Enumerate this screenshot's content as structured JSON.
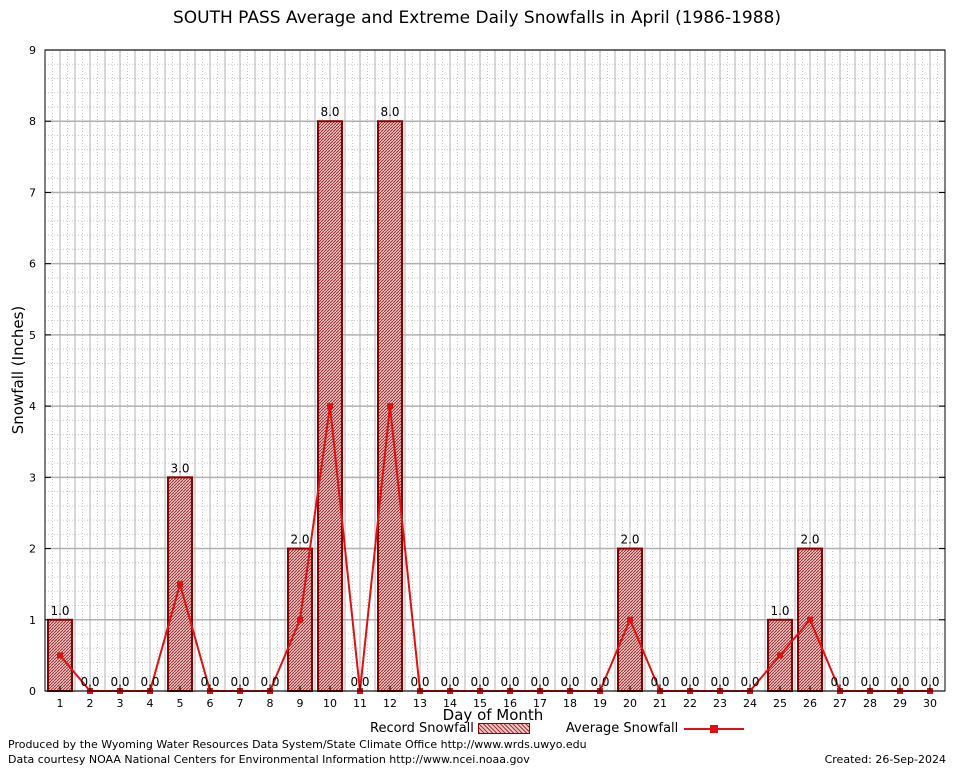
{
  "chart_data": {
    "type": "bar",
    "title": "SOUTH PASS Average and Extreme Daily Snowfalls in April (1986-1988)",
    "xlabel": "Day of Month",
    "ylabel": "Snowfall (Inches)",
    "categories": [
      "1",
      "2",
      "3",
      "4",
      "5",
      "6",
      "7",
      "8",
      "9",
      "10",
      "11",
      "12",
      "13",
      "14",
      "15",
      "16",
      "17",
      "18",
      "19",
      "20",
      "21",
      "22",
      "23",
      "24",
      "25",
      "26",
      "27",
      "28",
      "29",
      "30"
    ],
    "ylim": [
      0,
      9
    ],
    "yticks": [
      0,
      1,
      2,
      3,
      4,
      5,
      6,
      7,
      8,
      9
    ],
    "series": [
      {
        "name": "Record Snowfall",
        "kind": "bar",
        "values": [
          1.0,
          0.0,
          0.0,
          0.0,
          3.0,
          0.0,
          0.0,
          0.0,
          2.0,
          8.0,
          0.0,
          8.0,
          0.0,
          0.0,
          0.0,
          0.0,
          0.0,
          0.0,
          0.0,
          2.0,
          0.0,
          0.0,
          0.0,
          0.0,
          1.0,
          2.0,
          0.0,
          0.0,
          0.0,
          0.0
        ],
        "labels": [
          "1.0",
          "0.0",
          "0.0",
          "0.0",
          "3.0",
          "0.0",
          "0.0",
          "0.0",
          "2.0",
          "8.0",
          "0.0",
          "8.0",
          "0.0",
          "0.0",
          "0.0",
          "0.0",
          "0.0",
          "0.0",
          "0.0",
          "2.0",
          "0.0",
          "0.0",
          "0.0",
          "0.0",
          "1.0",
          "2.0",
          "0.0",
          "0.0",
          "0.0",
          "0.0"
        ]
      },
      {
        "name": "Average Snowfall",
        "kind": "line",
        "values": [
          0.5,
          0,
          0,
          0,
          1.5,
          0,
          0,
          0,
          1.0,
          4.0,
          0,
          4.0,
          0,
          0,
          0,
          0,
          0,
          0,
          0,
          1.0,
          0,
          0,
          0,
          0,
          0.5,
          1.0,
          0,
          0,
          0,
          0
        ]
      }
    ],
    "grid": true,
    "legend_position": "bottom",
    "colors": {
      "bar_edge": "#8b0000",
      "bar_fill": "#c89090",
      "line": "#e01010",
      "grid": "#b0b0b0"
    }
  },
  "footer": {
    "produced_by": "Produced by the Wyoming Water Resources Data System/State Climate Office http://www.wrds.uwyo.edu",
    "data_courtesy": "Data courtesy NOAA National Centers for Environmental Information http://www.ncei.noaa.gov",
    "created": "Created: 26-Sep-2024"
  }
}
